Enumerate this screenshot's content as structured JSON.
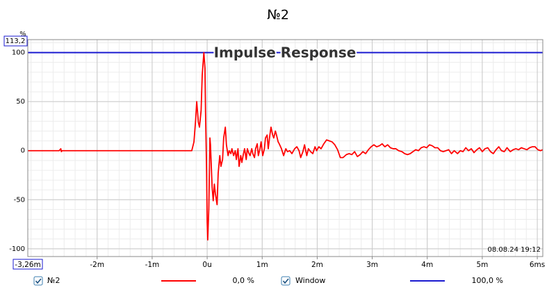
{
  "chart_data": {
    "type": "line",
    "title": "№2",
    "plot_title": "Impulse Response",
    "y_unit": "%",
    "timestamp": "08.08.24 19:12",
    "xlim": [
      -3.26,
      6.1
    ],
    "ylim": [
      -107.9,
      113.2
    ],
    "xticks": [
      {
        "value": -3.26,
        "label": "-3,26m"
      },
      {
        "value": -2,
        "label": "-2m"
      },
      {
        "value": -1,
        "label": "-1m"
      },
      {
        "value": 0,
        "label": "0u"
      },
      {
        "value": 1,
        "label": "1m"
      },
      {
        "value": 2,
        "label": "2m"
      },
      {
        "value": 3,
        "label": "3m"
      },
      {
        "value": 4,
        "label": "4m"
      },
      {
        "value": 5,
        "label": "5m"
      },
      {
        "value": 6,
        "label": "6ms"
      }
    ],
    "yticks": [
      {
        "value": 113.2,
        "label": "113,2"
      },
      100,
      50,
      0,
      -50,
      -100
    ],
    "grid": true,
    "minor_grid": true,
    "series": [
      {
        "name": "№2",
        "color": "#ff0000",
        "readout": "0,0 %",
        "x": [
          -3.26,
          -2.69,
          -2.66,
          -2.65,
          -2.64,
          -0.28,
          -0.24,
          -0.21,
          -0.19,
          -0.16,
          -0.14,
          -0.11,
          -0.09,
          -0.06,
          -0.04,
          -0.03,
          -0.01,
          0,
          0.01,
          0.03,
          0.05,
          0.06,
          0.09,
          0.11,
          0.13,
          0.15,
          0.18,
          0.2,
          0.23,
          0.25,
          0.28,
          0.3,
          0.33,
          0.35,
          0.38,
          0.4,
          0.43,
          0.45,
          0.48,
          0.51,
          0.53,
          0.56,
          0.58,
          0.61,
          0.63,
          0.66,
          0.68,
          0.71,
          0.73,
          0.76,
          0.78,
          0.81,
          0.83,
          0.86,
          0.88,
          0.91,
          0.93,
          0.96,
          0.98,
          1.01,
          1.04,
          1.06,
          1.09,
          1.11,
          1.14,
          1.16,
          1.19,
          1.21,
          1.24,
          1.26,
          1.29,
          1.31,
          1.35,
          1.39,
          1.43,
          1.46,
          1.5,
          1.54,
          1.59,
          1.63,
          1.67,
          1.7,
          1.74,
          1.77,
          1.81,
          1.84,
          1.88,
          1.92,
          1.96,
          1.99,
          2.03,
          2.07,
          2.12,
          2.17,
          2.22,
          2.27,
          2.32,
          2.37,
          2.42,
          2.47,
          2.53,
          2.58,
          2.63,
          2.68,
          2.73,
          2.78,
          2.83,
          2.88,
          2.93,
          2.98,
          3.03,
          3.08,
          3.13,
          3.18,
          3.23,
          3.28,
          3.33,
          3.38,
          3.43,
          3.48,
          3.54,
          3.59,
          3.64,
          3.69,
          3.74,
          3.79,
          3.84,
          3.89,
          3.94,
          3.99,
          4.04,
          4.09,
          4.14,
          4.19,
          4.24,
          4.29,
          4.34,
          4.39,
          4.44,
          4.49,
          4.55,
          4.6,
          4.65,
          4.7,
          4.75,
          4.8,
          4.85,
          4.9,
          4.95,
          5.0,
          5.05,
          5.1,
          5.15,
          5.2,
          5.25,
          5.3,
          5.35,
          5.4,
          5.45,
          5.51,
          5.56,
          5.61,
          5.66,
          5.71,
          5.76,
          5.81,
          5.86,
          5.91,
          5.96,
          6.01,
          6.06,
          6.1
        ],
        "values": [
          0,
          0,
          2,
          -1,
          0,
          0,
          9,
          31,
          50,
          29,
          24,
          41,
          77,
          100,
          84,
          41,
          -23,
          -73,
          -91,
          -59,
          13,
          6,
          -37,
          -51,
          -34,
          -44,
          -55,
          -23,
          -5,
          -16,
          -9,
          13,
          24,
          6,
          -5,
          0,
          -3,
          2,
          -5,
          0,
          -9,
          2,
          -16,
          -5,
          -12,
          -3,
          2,
          -9,
          2,
          -3,
          -5,
          2,
          -3,
          -7,
          2,
          7,
          -5,
          2,
          9,
          -5,
          2,
          13,
          16,
          2,
          16,
          24,
          16,
          13,
          20,
          16,
          9,
          7,
          2,
          -5,
          2,
          -1,
          0,
          -3,
          2,
          4,
          0,
          -7,
          -1,
          6,
          -5,
          2,
          -1,
          -3,
          4,
          0,
          4,
          2,
          7,
          11,
          10,
          9,
          6,
          1,
          -7,
          -7,
          -4,
          -3,
          -4,
          -1,
          -6,
          -4,
          -1,
          -3,
          1,
          4,
          6,
          4,
          5,
          7,
          4,
          6,
          3,
          2,
          2,
          0,
          -1,
          -3,
          -4,
          -3,
          -1,
          1,
          0,
          3,
          4,
          3,
          6,
          5,
          3,
          3,
          0,
          -1,
          0,
          1,
          -3,
          0,
          -3,
          0,
          -1,
          3,
          0,
          2,
          -2,
          1,
          3,
          -1,
          2,
          3,
          -1,
          -3,
          1,
          4,
          0,
          -1,
          3,
          -1,
          1,
          2,
          1,
          3,
          2,
          1,
          3,
          4,
          4,
          1,
          0,
          1
        ]
      },
      {
        "name": "Window",
        "color": "#1a1ad0",
        "readout": "100,0 %",
        "x": [
          -3.26,
          6.1
        ],
        "values": [
          100,
          100
        ]
      }
    ]
  }
}
